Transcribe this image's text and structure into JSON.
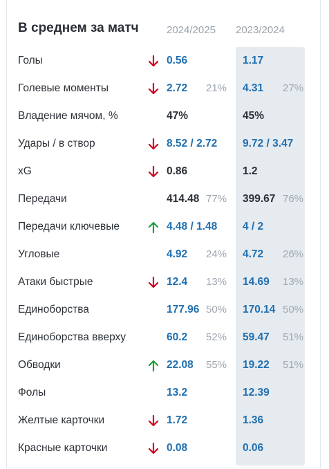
{
  "header": {
    "title": "В среднем за матч",
    "season_current": "2024/2025",
    "season_previous": "2023/2024"
  },
  "colors": {
    "down": "#d0021b",
    "up": "#1e9e3c",
    "link": "#1f6fb0",
    "prev_bg": "#e6ebf0"
  },
  "rows": [
    {
      "label": "Голы",
      "arrow": "down",
      "cur": "0.56",
      "cur_pct": "",
      "prev": "1.17",
      "prev_pct": "",
      "linked": true
    },
    {
      "label": "Голевые моменты",
      "arrow": "down",
      "cur": "2.72",
      "cur_pct": "21%",
      "prev": "4.31",
      "prev_pct": "27%",
      "linked": true
    },
    {
      "label": "Владение мячом, %",
      "arrow": "",
      "cur": "47%",
      "cur_pct": "",
      "prev": "45%",
      "prev_pct": "",
      "linked": false
    },
    {
      "label": "Удары / в створ",
      "arrow": "down",
      "cur": "8.52",
      "cur2": "2.72",
      "cur_pct": "",
      "prev": "9.72",
      "prev2": "3.47",
      "prev_pct": "",
      "linked": true
    },
    {
      "label": "xG",
      "arrow": "down",
      "cur": "0.86",
      "cur_pct": "",
      "prev": "1.2",
      "prev_pct": "",
      "linked": false
    },
    {
      "label": "Передачи",
      "arrow": "",
      "cur": "414.48",
      "cur_pct": "77%",
      "prev": "399.67",
      "prev_pct": "76%",
      "linked": false
    },
    {
      "label": "Передачи ключевые",
      "arrow": "up",
      "cur": "4.48",
      "cur2": "1.48",
      "cur_pct": "",
      "prev": "4",
      "prev2": "2",
      "prev_pct": "",
      "linked": true
    },
    {
      "label": "Угловые",
      "arrow": "",
      "cur": "4.92",
      "cur_pct": "24%",
      "prev": "4.72",
      "prev_pct": "26%",
      "linked": true
    },
    {
      "label": "Атаки быстрые",
      "arrow": "down",
      "cur": "12.4",
      "cur_pct": "13%",
      "prev": "14.69",
      "prev_pct": "13%",
      "linked": true
    },
    {
      "label": "Единоборства",
      "arrow": "",
      "cur": "177.96",
      "cur_pct": "50%",
      "prev": "170.14",
      "prev_pct": "50%",
      "linked": true
    },
    {
      "label": "Единоборства вверху",
      "arrow": "",
      "cur": "60.2",
      "cur_pct": "52%",
      "prev": "59.47",
      "prev_pct": "51%",
      "linked": true
    },
    {
      "label": "Обводки",
      "arrow": "up",
      "cur": "22.08",
      "cur_pct": "55%",
      "prev": "19.22",
      "prev_pct": "51%",
      "linked": true
    },
    {
      "label": "Фолы",
      "arrow": "",
      "cur": "13.2",
      "cur_pct": "",
      "prev": "12.39",
      "prev_pct": "",
      "linked": true
    },
    {
      "label": "Желтые карточки",
      "arrow": "down",
      "cur": "1.72",
      "cur_pct": "",
      "prev": "1.36",
      "prev_pct": "",
      "linked": true
    },
    {
      "label": "Красные карточки",
      "arrow": "down",
      "cur": "0.08",
      "cur_pct": "",
      "prev": "0.06",
      "prev_pct": "",
      "linked": true
    }
  ]
}
